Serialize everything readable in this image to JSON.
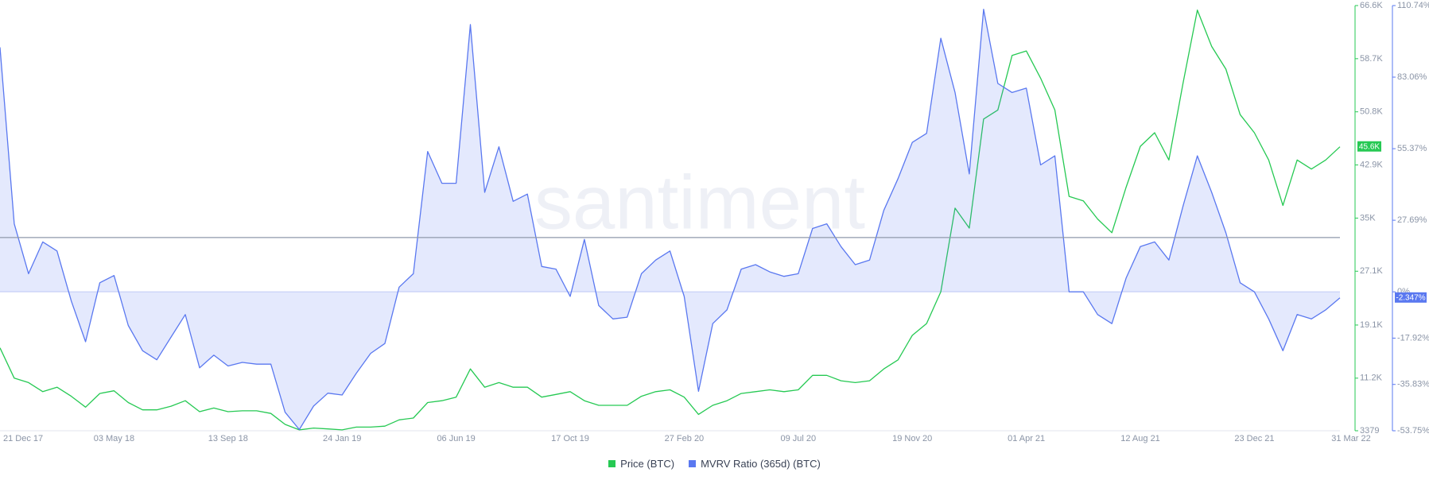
{
  "chart_data": {
    "type": "line",
    "watermark": "santiment",
    "categories": [
      "21 Dec 17",
      null,
      null,
      null,
      null,
      null,
      null,
      null,
      "03 May 18",
      null,
      null,
      null,
      null,
      null,
      null,
      null,
      "13 Sep 18",
      null,
      null,
      null,
      null,
      null,
      null,
      null,
      "24 Jan 19",
      null,
      null,
      null,
      null,
      null,
      null,
      null,
      "06 Jun 19",
      null,
      null,
      null,
      null,
      null,
      null,
      null,
      "17 Oct 19",
      null,
      null,
      null,
      null,
      null,
      null,
      null,
      "27 Feb 20",
      null,
      null,
      null,
      null,
      null,
      null,
      null,
      "09 Jul 20",
      null,
      null,
      null,
      null,
      null,
      null,
      null,
      "19 Nov 20",
      null,
      null,
      null,
      null,
      null,
      null,
      null,
      "01 Apr 21",
      null,
      null,
      null,
      null,
      null,
      null,
      null,
      "12 Aug 21",
      null,
      null,
      null,
      null,
      null,
      null,
      null,
      "23 Dec 21",
      null,
      null,
      null,
      null,
      null,
      "31 Mar 22"
    ],
    "series": [
      {
        "name": "Price (BTC)",
        "color": "#26c953",
        "axis": "y",
        "last_label": "45.6K",
        "values": [
          15700,
          11200,
          10540,
          9190,
          9860,
          8510,
          6890,
          8920,
          9320,
          7570,
          6490,
          6490,
          7030,
          7840,
          6220,
          6760,
          6220,
          6350,
          6350,
          5950,
          4330,
          3510,
          3780,
          3650,
          3510,
          3920,
          3920,
          4060,
          5000,
          5270,
          7570,
          7840,
          8380,
          12570,
          9860,
          10540,
          9860,
          9860,
          8380,
          8780,
          9190,
          7840,
          7160,
          7160,
          7160,
          8510,
          9190,
          9460,
          8380,
          5810,
          7160,
          7840,
          8920,
          9190,
          9460,
          9190,
          9460,
          11620,
          11620,
          10810,
          10540,
          10810,
          12570,
          13920,
          17560,
          19320,
          24050,
          36480,
          33510,
          49720,
          51070,
          59180,
          59850,
          55800,
          51070,
          38230,
          37560,
          34860,
          32830,
          39590,
          45670,
          47690,
          43640,
          55120,
          65930,
          60530,
          57150,
          50390,
          47690,
          43640,
          36880,
          43640,
          42290,
          43640,
          45600
        ]
      },
      {
        "name": "MVRV Ratio (365d) (BTC)",
        "color": "#5a78f0",
        "axis": "y2",
        "area": true,
        "last_label": "-2.347%",
        "values": [
          94.6,
          26.3,
          7.0,
          19.3,
          15.8,
          -3.5,
          -19.3,
          3.5,
          6.3,
          -13.0,
          -22.8,
          -26.3,
          -17.5,
          -8.8,
          -29.4,
          -24.5,
          -28.7,
          -27.3,
          -28.0,
          -28.0,
          -46.6,
          -53.3,
          -44.2,
          -39.2,
          -39.9,
          -31.5,
          -23.8,
          -20.0,
          1.8,
          7.0,
          54.3,
          42.0,
          42.0,
          103.4,
          38.5,
          56.1,
          35.0,
          37.8,
          9.8,
          8.8,
          -1.8,
          20.3,
          -5.3,
          -10.5,
          -9.8,
          7.0,
          12.3,
          15.8,
          -1.8,
          -38.5,
          -12.3,
          -7.0,
          8.8,
          10.5,
          7.7,
          6.0,
          7.0,
          24.5,
          26.3,
          17.5,
          10.5,
          12.3,
          31.5,
          43.8,
          57.8,
          61.3,
          98.1,
          77.1,
          45.6,
          109.3,
          80.6,
          77.1,
          78.8,
          49.1,
          52.6,
          0,
          0,
          -8.8,
          -12.3,
          5.3,
          17.5,
          19.3,
          12.3,
          33.3,
          52.6,
          38.5,
          22.8,
          3.5,
          0,
          -10.5,
          -22.8,
          -8.8,
          -10.5,
          -7.0,
          -2.347
        ]
      }
    ],
    "ylim": [
      3379,
      66600
    ],
    "yticks": [
      3379,
      {
        "value": 11200,
        "label": "11.2K"
      },
      {
        "value": 19100,
        "label": "19.1K"
      },
      {
        "value": 27100,
        "label": "27.1K"
      },
      {
        "value": 35000,
        "label": "35K"
      },
      {
        "value": 42900,
        "label": "42.9K"
      },
      {
        "value": 50800,
        "label": "50.8K"
      },
      {
        "value": 58700,
        "label": "58.7K"
      },
      {
        "value": 66600,
        "label": "66.6K"
      }
    ],
    "y2lim": [
      -53.75,
      110.74
    ],
    "y2ticks": [
      {
        "value": -53.75,
        "label": "-53.75%"
      },
      {
        "value": -35.83,
        "label": "-35.83%"
      },
      {
        "value": -17.92,
        "label": "-17.92%"
      },
      {
        "value": 0,
        "label": "0%"
      },
      {
        "value": 27.69,
        "label": "27.69%"
      },
      {
        "value": 55.37,
        "label": "55.37%"
      },
      {
        "value": 83.06,
        "label": "83.06%"
      },
      {
        "value": 110.74,
        "label": "110.74%"
      }
    ],
    "y2_reference": 21,
    "legend": "bottom"
  }
}
